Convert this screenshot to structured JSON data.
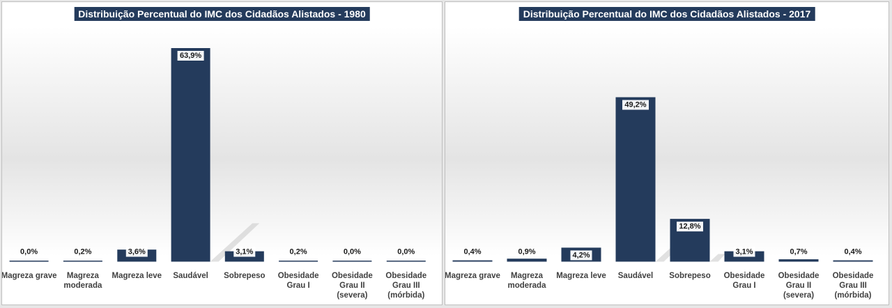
{
  "chart_data": [
    {
      "type": "bar",
      "title": "Distribuição Percentual do IMC dos Cidadãos Alistados - 1980",
      "categories": [
        [
          "Magreza grave"
        ],
        [
          "Magreza",
          "moderada"
        ],
        [
          "Magreza leve"
        ],
        [
          "Saudável"
        ],
        [
          "Sobrepeso"
        ],
        [
          "Obesidade",
          "Grau I"
        ],
        [
          "Obesidade",
          "Grau II",
          "(severa)"
        ],
        [
          "Obesidade",
          "Grau III",
          "(mórbida)"
        ]
      ],
      "values": [
        0.0,
        0.2,
        3.6,
        63.9,
        3.1,
        0.2,
        0.0,
        0.0
      ],
      "labels": [
        "0,0%",
        "0,2%",
        "3,6%",
        "63,9%",
        "3,1%",
        "0,2%",
        "0,0%",
        "0,0%"
      ],
      "unit": "%",
      "ylim": [
        0,
        65
      ],
      "grid": false,
      "legend": "none",
      "bar_color": "#243b5c",
      "title_bg": "#243b5c"
    },
    {
      "type": "bar",
      "title": "Distribuição Percentual do IMC dos Cidadãos Alistados - 2017",
      "categories": [
        [
          "Magreza grave"
        ],
        [
          "Magreza",
          "moderada"
        ],
        [
          "Magreza leve"
        ],
        [
          "Saudável"
        ],
        [
          "Sobrepeso"
        ],
        [
          "Obesidade",
          "Grau I"
        ],
        [
          "Obesidade",
          "Grau II",
          "(severa)"
        ],
        [
          "Obesidade",
          "Grau III",
          "(mórbida)"
        ]
      ],
      "values": [
        0.4,
        0.9,
        4.2,
        49.2,
        12.8,
        3.1,
        0.7,
        0.4
      ],
      "labels": [
        "0,4%",
        "0,9%",
        "4,2%",
        "49,2%",
        "12,8%",
        "3,1%",
        "0,7%",
        "0,4%"
      ],
      "unit": "%",
      "ylim": [
        0,
        65
      ],
      "grid": false,
      "legend": "none",
      "bar_color": "#243b5c",
      "title_bg": "#243b5c"
    }
  ]
}
